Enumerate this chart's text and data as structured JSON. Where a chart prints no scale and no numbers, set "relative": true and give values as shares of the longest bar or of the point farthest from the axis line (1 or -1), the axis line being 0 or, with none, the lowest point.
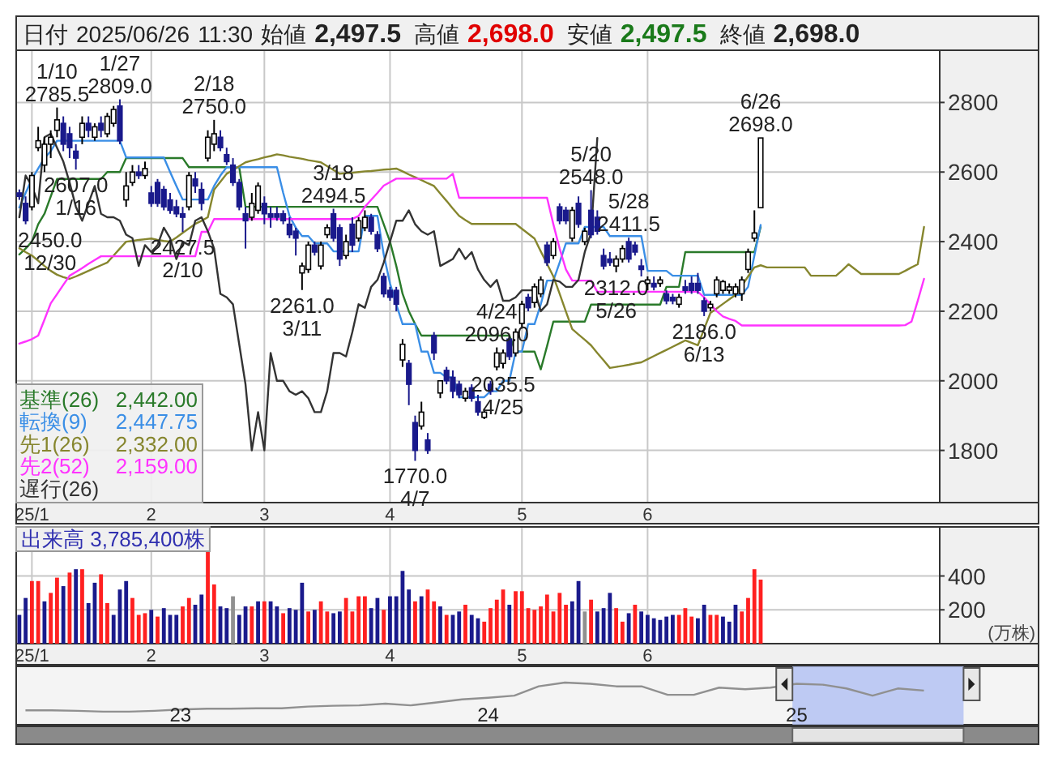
{
  "chart_data": [
    {
      "type": "candlestick",
      "title": "日付 2025/06/26 11:30 始値 2,497.5 高値 2,698.0 安値 2,497.5 終値 2,698.0",
      "categories": [
        null,
        null,
        "25/1",
        null,
        null,
        null,
        null,
        null,
        null,
        null,
        null,
        null,
        null,
        null,
        null,
        null,
        null,
        null,
        null,
        null,
        null,
        "2",
        null,
        null,
        null,
        null,
        null,
        null,
        null,
        null,
        null,
        null,
        null,
        null,
        null,
        null,
        null,
        null,
        null,
        "3",
        null,
        null,
        null,
        null,
        null,
        null,
        null,
        null,
        null,
        null,
        null,
        null,
        null,
        null,
        null,
        null,
        null,
        null,
        null,
        "4",
        null,
        null,
        null,
        null,
        null,
        null,
        null,
        null,
        null,
        null,
        null,
        null,
        null,
        null,
        null,
        null,
        null,
        null,
        null,
        null,
        "5",
        null,
        null,
        null,
        null,
        null,
        null,
        null,
        null,
        null,
        null,
        null,
        null,
        null,
        null,
        null,
        null,
        null,
        null,
        null,
        "6",
        null,
        null,
        null,
        null,
        null,
        null,
        null,
        null,
        null,
        null,
        null,
        null,
        null,
        null,
        null,
        null,
        null,
        null,
        null,
        null,
        null,
        null,
        null,
        null,
        null,
        null,
        null,
        null,
        null,
        null,
        null,
        null,
        null,
        null,
        null,
        null,
        null,
        null,
        null,
        null,
        null,
        null,
        null,
        null,
        null,
        null
      ],
      "ohlc": [
        [
          2540,
          2550,
          2520,
          2530
        ],
        [
          2510,
          2530,
          2450,
          2460
        ],
        [
          2500,
          2600,
          2490,
          2590
        ],
        [
          2670,
          2730,
          2660,
          2690
        ],
        [
          2620,
          2700,
          2600,
          2680
        ],
        [
          2680,
          2720,
          2640,
          2700
        ],
        [
          2720,
          2785.5,
          2700,
          2750
        ],
        [
          2740,
          2760,
          2660,
          2680
        ],
        [
          2710,
          2730,
          2640,
          2670
        ],
        [
          2660,
          2680,
          2607,
          2640
        ],
        [
          2700,
          2760,
          2680,
          2740
        ],
        [
          2740,
          2760,
          2700,
          2720
        ],
        [
          2700,
          2740,
          2690,
          2730
        ],
        [
          2740,
          2760,
          2700,
          2720
        ],
        [
          2710,
          2770,
          2700,
          2760
        ],
        [
          2740,
          2790,
          2730,
          2780
        ],
        [
          2790,
          2809,
          2680,
          2690
        ],
        [
          2520,
          2600,
          2500,
          2560
        ],
        [
          2570,
          2620,
          2560,
          2600
        ],
        [
          2600,
          2620,
          2580,
          2590
        ],
        [
          2590,
          2630,
          2580,
          2610
        ],
        [
          2540,
          2560,
          2500,
          2510
        ],
        [
          2570,
          2580,
          2500,
          2510
        ],
        [
          2550,
          2560,
          2490,
          2500
        ],
        [
          2520,
          2540,
          2480,
          2490
        ],
        [
          2500,
          2520,
          2470,
          2480
        ],
        [
          2480,
          2500,
          2427.5,
          2470
        ],
        [
          2500,
          2600,
          2490,
          2590
        ],
        [
          2580,
          2600,
          2540,
          2560
        ],
        [
          2550,
          2570,
          2490,
          2510
        ],
        [
          2640,
          2720,
          2630,
          2700
        ],
        [
          2680,
          2750,
          2660,
          2710
        ],
        [
          2700,
          2720,
          2660,
          2670
        ],
        [
          2650,
          2670,
          2620,
          2630
        ],
        [
          2620,
          2640,
          2560,
          2570
        ],
        [
          2570,
          2580,
          2490,
          2500
        ],
        [
          2480,
          2500,
          2380,
          2460
        ],
        [
          2470,
          2540,
          2460,
          2510
        ],
        [
          2490,
          2570,
          2480,
          2560
        ],
        [
          2510,
          2530,
          2450,
          2480
        ],
        [
          2480,
          2500,
          2440,
          2470
        ],
        [
          2480,
          2500,
          2460,
          2470
        ],
        [
          2480,
          2490,
          2450,
          2460
        ],
        [
          2450,
          2470,
          2410,
          2420
        ],
        [
          2430,
          2440,
          2360,
          2410
        ],
        [
          2310,
          2340,
          2261,
          2330
        ],
        [
          2320,
          2400,
          2310,
          2390
        ],
        [
          2390,
          2400,
          2360,
          2370
        ],
        [
          2330,
          2400,
          2320,
          2390
        ],
        [
          2420,
          2450,
          2410,
          2440
        ],
        [
          2480,
          2494.5,
          2400,
          2410
        ],
        [
          2440,
          2450,
          2330,
          2350
        ],
        [
          2360,
          2420,
          2350,
          2400
        ],
        [
          2450,
          2470,
          2370,
          2390
        ],
        [
          2410,
          2470,
          2400,
          2460
        ],
        [
          2440,
          2490,
          2430,
          2470
        ],
        [
          2470,
          2480,
          2420,
          2430
        ],
        [
          2420,
          2430,
          2370,
          2380
        ],
        [
          2300,
          2310,
          2240,
          2250
        ],
        [
          2260,
          2270,
          2230,
          2240
        ],
        [
          2260,
          2270,
          2200,
          2220
        ],
        [
          2060,
          2120,
          2040,
          2105
        ],
        [
          2050,
          2060,
          1930,
          1990
        ],
        [
          1880,
          1900,
          1770,
          1800
        ],
        [
          1870,
          1940,
          1860,
          1910
        ],
        [
          1830,
          1850,
          1790,
          1800
        ],
        [
          2130,
          2140,
          2060,
          2080
        ],
        [
          1965,
          2000,
          1950,
          2000
        ],
        [
          2030,
          2040,
          1990,
          2000
        ],
        [
          2010,
          2030,
          1950,
          1970
        ],
        [
          1990,
          2000,
          1950,
          1960
        ],
        [
          1950,
          1980,
          1940,
          1970
        ],
        [
          1980,
          1990,
          1940,
          1950
        ],
        [
          1940,
          1960,
          1900,
          1910
        ],
        [
          1895,
          1920,
          1890,
          1910
        ],
        [
          1990,
          2000,
          1960,
          1970
        ],
        [
          2040,
          2096,
          2030,
          2080
        ],
        [
          2050,
          2090,
          2035.5,
          2080
        ],
        [
          2120,
          2130,
          2060,
          2070
        ],
        [
          2080,
          2150,
          2070,
          2140
        ],
        [
          2165,
          2230,
          2150,
          2220
        ],
        [
          2240,
          2250,
          2200,
          2210
        ],
        [
          2225,
          2280,
          2210,
          2270
        ],
        [
          2250,
          2300,
          2240,
          2290
        ],
        [
          2390,
          2400,
          2330,
          2340
        ],
        [
          2360,
          2410,
          2350,
          2400
        ],
        [
          2500,
          2510,
          2450,
          2460
        ],
        [
          2490,
          2500,
          2450,
          2460
        ],
        [
          2410,
          2500,
          2400,
          2490
        ],
        [
          2510,
          2530,
          2440,
          2450
        ],
        [
          2400,
          2440,
          2390,
          2430
        ],
        [
          2490,
          2548,
          2410,
          2420
        ],
        [
          2470,
          2490,
          2420,
          2430
        ],
        [
          2360,
          2380,
          2320,
          2330
        ],
        [
          2350,
          2370,
          2330,
          2340
        ],
        [
          2330,
          2360,
          2312,
          2350
        ],
        [
          2350,
          2390,
          2340,
          2380
        ],
        [
          2400,
          2411.5,
          2340,
          2350
        ],
        [
          2390,
          2400,
          2360,
          2370
        ],
        [
          2330,
          2350,
          2300,
          2320
        ],
        [
          2280,
          2300,
          2260,
          2290
        ],
        [
          2280,
          2300,
          2260,
          2270
        ],
        [
          2280,
          2300,
          2270,
          2290
        ],
        [
          2250,
          2260,
          2220,
          2230
        ],
        [
          2240,
          2250,
          2220,
          2230
        ],
        [
          2220,
          2250,
          2210,
          2240
        ],
        [
          2270,
          2290,
          2250,
          2260
        ],
        [
          2280,
          2300,
          2250,
          2260
        ],
        [
          2280,
          2310,
          2250,
          2260
        ],
        [
          2230,
          2240,
          2186,
          2200
        ],
        [
          2210,
          2230,
          2200,
          2220
        ],
        [
          2250,
          2300,
          2240,
          2290
        ],
        [
          2260,
          2290,
          2250,
          2285
        ],
        [
          2260,
          2280,
          2250,
          2270
        ],
        [
          2250,
          2280,
          2240,
          2270
        ],
        [
          2250,
          2300,
          2230,
          2290
        ],
        [
          2320,
          2380,
          2310,
          2370
        ],
        [
          2410,
          2490,
          2400,
          2425
        ],
        [
          2497.5,
          2698,
          2497.5,
          2698
        ],
        null,
        null,
        null,
        null,
        null,
        null,
        null,
        null,
        null,
        null,
        null,
        null,
        null,
        null,
        null,
        null,
        null,
        null,
        null,
        null,
        null,
        null,
        null,
        null,
        null,
        null,
        null,
        null
      ],
      "value_labels": [
        null,
        "2450.0\n12/30",
        null,
        null,
        null,
        null,
        "1/10\n2785.5",
        null,
        null,
        "2607.0\n1/16",
        null,
        null,
        null,
        null,
        null,
        null,
        "1/27\n2809.0",
        null,
        null,
        null,
        null,
        null,
        null,
        null,
        null,
        null,
        "2427.5\n2/10",
        null,
        null,
        null,
        null,
        "2/18\n2750.0",
        null,
        null,
        null,
        null,
        null,
        null,
        null,
        null,
        null,
        null,
        null,
        null,
        null,
        "2261.0\n3/11",
        null,
        null,
        null,
        null,
        "3/18\n2494.5",
        null,
        null,
        null,
        null,
        null,
        null,
        null,
        null,
        null,
        null,
        null,
        null,
        "1770.0\n4/7",
        null,
        null,
        null,
        null,
        null,
        null,
        null,
        null,
        null,
        null,
        null,
        null,
        "4/24\n2096.0",
        "2035.5\n4/25",
        null,
        null,
        null,
        null,
        null,
        null,
        null,
        null,
        null,
        null,
        null,
        null,
        null,
        "5/20\n2548.0",
        null,
        null,
        null,
        "2312.0\n5/26",
        null,
        "5/28\n2411.5",
        null,
        null,
        null,
        null,
        null,
        null,
        null,
        null,
        null,
        null,
        null,
        "2186.0\n6/13",
        null,
        null,
        null,
        null,
        null,
        null,
        null,
        null,
        "6/26\n2698.0",
        null,
        null,
        null,
        null,
        null,
        null,
        null,
        null,
        null,
        null,
        null,
        null,
        null,
        null,
        null,
        null,
        null,
        null,
        null,
        null,
        null,
        null,
        null,
        null,
        null,
        null,
        null,
        null
      ],
      "series": [
        {
          "name": "基準(26)",
          "type": "line",
          "color": "#2a7a2a",
          "values": [
            2363,
            2380,
            2400,
            2450,
            2480,
            2530,
            2580,
            2580,
            2580,
            2580,
            2580,
            2580,
            2580,
            2580,
            2600,
            2600,
            2600,
            2640,
            2640,
            2640,
            2640,
            2640,
            2640,
            2640,
            2640,
            2640,
            2640,
            2614,
            2614,
            2614,
            2614,
            2614,
            2614,
            2614,
            2614,
            2614,
            2500,
            2500,
            2500,
            2500,
            2500,
            2500,
            2500,
            2500,
            2500,
            2500,
            2500,
            2500,
            2500,
            2500,
            2500,
            2500,
            2500,
            2500,
            2500,
            2500,
            2500,
            2500,
            2450,
            2400,
            2330,
            2250,
            2200,
            2163,
            2130,
            2130,
            2130,
            2130,
            2130,
            2130,
            2130,
            2130,
            2130,
            2130,
            2130,
            2130,
            2130,
            2130,
            2130,
            2084,
            2084,
            2084,
            2084,
            2033,
            2100,
            2170,
            2170,
            2170,
            2170,
            2170,
            2170,
            2219,
            2219,
            2219,
            2219,
            2219,
            2219,
            2219,
            2219,
            2219,
            2219,
            2219,
            2219,
            2270,
            2270,
            2270,
            2370,
            2370,
            2370,
            2370,
            2370,
            2370,
            2370,
            2370,
            2370,
            2370,
            2370,
            2370,
            2442,
            null,
            null,
            null,
            null,
            null,
            null,
            null,
            null,
            null,
            null,
            null,
            null,
            null,
            null,
            null,
            null,
            null,
            null,
            null,
            null,
            null,
            null,
            null,
            null,
            null,
            null,
            null,
            null
          ]
        },
        {
          "name": "転換(9)",
          "type": "line",
          "color": "#3a8ee6",
          "values": [
            2498,
            2540,
            2580,
            2610,
            2640,
            2660,
            2690,
            2690,
            2690,
            2690,
            2690,
            2690,
            2690,
            2690,
            2690,
            2690,
            2690,
            2642,
            2642,
            2642,
            2642,
            2642,
            2642,
            2642,
            2600,
            2560,
            2521,
            2521,
            2521,
            2521,
            2521,
            2560,
            2590,
            2614,
            2614,
            2614,
            2614,
            2614,
            2614,
            2614,
            2614,
            2614,
            2540,
            2474,
            2440,
            2416,
            2416,
            2395,
            2395,
            2395,
            2372,
            2372,
            2372,
            2372,
            2372,
            2474,
            2474,
            2474,
            2363,
            2280,
            2220,
            2163,
            2163,
            2163,
            2084,
            2084,
            2023,
            2023,
            2010,
            2010,
            1953,
            1953,
            1953,
            1953,
            1953,
            1970,
            1970,
            2000,
            2000,
            2084,
            2084,
            2163,
            2163,
            2220,
            2288,
            2288,
            2340,
            2395,
            2395,
            2395,
            2442,
            2442,
            2442,
            2442,
            2416,
            2416,
            2416,
            2416,
            2416,
            2416,
            2316,
            2316,
            2316,
            2316,
            2302,
            2302,
            2302,
            2302,
            2302,
            2247,
            2247,
            2247,
            2247,
            2247,
            2247,
            2247,
            2270,
            2360,
            2447.75,
            null,
            null,
            null,
            null,
            null,
            null,
            null,
            null,
            null,
            null,
            null,
            null,
            null,
            null,
            null,
            null,
            null,
            null,
            null,
            null,
            null,
            null,
            null,
            null,
            null,
            null,
            null,
            null
          ]
        },
        {
          "name": "先1(26)",
          "type": "line",
          "color": "#86862e",
          "values": [
            2381,
            2370,
            2360,
            2345,
            2330,
            2316,
            2305,
            2298,
            2293,
            2300,
            2308,
            2316,
            2324,
            2332,
            2340,
            2360,
            2380,
            2400,
            2402,
            2405,
            2407,
            2409,
            2405,
            2402,
            2400,
            2412,
            2425,
            2438,
            2451,
            2460,
            2470,
            2549,
            2572,
            2595,
            2606,
            2617,
            2628,
            2633,
            2637,
            2642,
            2646,
            2651,
            2648,
            2644,
            2641,
            2638,
            2634,
            2631,
            2628,
            2617,
            2606,
            2595,
            2597,
            2598,
            2600,
            2602,
            2603,
            2605,
            2607,
            2608,
            2610,
            2602,
            2593,
            2585,
            2577,
            2568,
            2560,
            2538,
            2517,
            2495,
            2474,
            2462,
            2451,
            2451,
            2451,
            2451,
            2451,
            2451,
            2451,
            2451,
            2437,
            2423,
            2409,
            2372,
            2336,
            2300,
            2250,
            2199,
            2149,
            2133,
            2118,
            2102,
            2080,
            2059,
            2037,
            2040,
            2043,
            2046,
            2050,
            2053,
            2062,
            2071,
            2080,
            2089,
            2098,
            2107,
            2116,
            2109,
            2102,
            2149,
            2195,
            2208,
            2221,
            2234,
            2247,
            2273,
            2300,
            2326,
            2332,
            2326,
            2326,
            2326,
            2326,
            2326,
            2326,
            2326,
            2302,
            2302,
            2302,
            2302,
            2302,
            2318,
            2335,
            2321,
            2307,
            2307,
            2307,
            2307,
            2307,
            2307,
            2307,
            2316,
            2326,
            2335,
            2442,
            null,
            null
          ]
        },
        {
          "name": "先2(52)",
          "type": "line",
          "color": "#ff33ff",
          "values": [
            2107,
            2113,
            2120,
            2130,
            2176,
            2223,
            2249,
            2276,
            2302,
            2313,
            2324,
            2336,
            2347,
            2358,
            2358,
            2358,
            2358,
            2358,
            2358,
            2358,
            2358,
            2358,
            2358,
            2358,
            2358,
            2358,
            2358,
            2358,
            2358,
            2428,
            2428,
            2465,
            2465,
            2465,
            2465,
            2465,
            2465,
            2465,
            2465,
            2465,
            2465,
            2465,
            2465,
            2465,
            2465,
            2465,
            2465,
            2465,
            2465,
            2465,
            2465,
            2465,
            2465,
            2465,
            2474,
            2500,
            2520,
            2540,
            2561,
            2571,
            2581,
            2581,
            2581,
            2581,
            2581,
            2581,
            2581,
            2581,
            2581,
            2595,
            2526,
            2526,
            2526,
            2526,
            2526,
            2526,
            2526,
            2526,
            2526,
            2526,
            2526,
            2526,
            2526,
            2526,
            2526,
            2450,
            2380,
            2320,
            2288,
            2288,
            2288,
            2288,
            2256,
            2256,
            2256,
            2256,
            2256,
            2256,
            2256,
            2256,
            2256,
            2256,
            2256,
            2256,
            2256,
            2256,
            2256,
            2256,
            2256,
            2240,
            2220,
            2200,
            2185,
            2178,
            2172,
            2159,
            2159,
            2159,
            2159,
            2159,
            2159,
            2159,
            2159,
            2159,
            2159,
            2159,
            2159,
            2159,
            2159,
            2159,
            2159,
            2159,
            2159,
            2159,
            2159,
            2159,
            2159,
            2159,
            2159,
            2159,
            2159,
            2160,
            2170,
            2230,
            2293,
            null,
            null
          ]
        },
        {
          "name": "遅行(26)",
          "type": "line",
          "color": "#333333",
          "values": [
            2470,
            2590,
            2560,
            2510,
            2700,
            2710,
            2670,
            2630,
            2570,
            2500,
            2460,
            2510,
            2560,
            2480,
            2470,
            2470,
            2460,
            2420,
            2410,
            2330,
            2390,
            2370,
            2390,
            2440,
            2410,
            2350,
            2400,
            2390,
            2460,
            2470,
            2430,
            2380,
            2250,
            2240,
            2220,
            2105,
            1990,
            1800,
            1910,
            1800,
            2080,
            2000,
            2000,
            1970,
            1960,
            1970,
            1950,
            1910,
            1910,
            1970,
            2080,
            2080,
            2070,
            2140,
            2220,
            2210,
            2270,
            2290,
            2340,
            2400,
            2460,
            2460,
            2490,
            2450,
            2430,
            2420,
            2430,
            2330,
            2340,
            2350,
            2380,
            2350,
            2370,
            2320,
            2290,
            2270,
            2290,
            2230,
            2230,
            2240,
            2260,
            2260,
            2260,
            2200,
            2220,
            2290,
            2285,
            2270,
            2270,
            2290,
            2370,
            2425,
            2698,
            null,
            null,
            null,
            null,
            null,
            null,
            null,
            null,
            null,
            null,
            null,
            null,
            null,
            null,
            null,
            null,
            null,
            null,
            null,
            null,
            null,
            null,
            null,
            null,
            null,
            null,
            null,
            null,
            null,
            null,
            null,
            null,
            null,
            null,
            null,
            null,
            null,
            null,
            null,
            null,
            null,
            null,
            null,
            null,
            null,
            null,
            null,
            null,
            null,
            null,
            null,
            null,
            null,
            null
          ]
        }
      ],
      "ylim": [
        1650,
        2950
      ],
      "yticks": [
        1800,
        2000,
        2200,
        2400,
        2600,
        2800
      ],
      "grid": true,
      "legend": "bottom left",
      "annotations": [
        "2,442.00",
        "2,447.75",
        "2,332.00",
        "2,159.00"
      ]
    },
    {
      "type": "bar",
      "title": "出来高 3,785,400株",
      "ylabel": "(万株)",
      "categories": [
        null,
        null,
        "25/1",
        null,
        null,
        null,
        null,
        null,
        null,
        null,
        null,
        null,
        null,
        null,
        null,
        null,
        null,
        null,
        null,
        null,
        null,
        "2",
        null,
        null,
        null,
        null,
        null,
        null,
        null,
        null,
        null,
        null,
        null,
        null,
        null,
        null,
        null,
        null,
        null,
        "3",
        null,
        null,
        null,
        null,
        null,
        null,
        null,
        null,
        null,
        null,
        null,
        null,
        null,
        null,
        null,
        null,
        null,
        null,
        null,
        "4",
        null,
        null,
        null,
        null,
        null,
        null,
        null,
        null,
        null,
        null,
        null,
        null,
        null,
        null,
        null,
        null,
        null,
        null,
        null,
        null,
        "5",
        null,
        null,
        null,
        null,
        null,
        null,
        null,
        null,
        null,
        null,
        null,
        null,
        null,
        null,
        null,
        null,
        null,
        null,
        null,
        "6",
        null,
        null,
        null,
        null,
        null,
        null,
        null,
        null,
        null,
        null,
        null,
        null,
        null,
        null,
        null,
        null,
        null,
        null,
        null,
        null,
        null,
        null,
        null,
        null,
        null,
        null,
        null,
        null,
        null,
        null,
        null,
        null,
        null,
        null,
        null,
        null,
        null,
        null,
        null,
        null,
        null,
        null,
        null,
        null,
        null,
        null
      ],
      "values": [
        170,
        270,
        370,
        370,
        250,
        300,
        390,
        340,
        420,
        440,
        440,
        240,
        360,
        410,
        240,
        170,
        320,
        370,
        270,
        170,
        180,
        200,
        160,
        210,
        170,
        170,
        220,
        270,
        230,
        290,
        550,
        350,
        220,
        210,
        280,
        170,
        220,
        220,
        250,
        250,
        250,
        220,
        180,
        210,
        200,
        360,
        190,
        200,
        250,
        190,
        180,
        190,
        270,
        190,
        280,
        280,
        210,
        270,
        200,
        280,
        280,
        430,
        320,
        250,
        280,
        320,
        250,
        220,
        170,
        170,
        190,
        230,
        170,
        150,
        130,
        210,
        260,
        320,
        230,
        310,
        310,
        210,
        200,
        220,
        290,
        190,
        300,
        230,
        250,
        370,
        190,
        260,
        190,
        210,
        300,
        210,
        130,
        180,
        230,
        190,
        170,
        150,
        140,
        160,
        170,
        170,
        210,
        160,
        150,
        230,
        170,
        170,
        160,
        130,
        230,
        190,
        270,
        440,
        378.54,
        null,
        null,
        null,
        null,
        null,
        null,
        null,
        null,
        null,
        null,
        null,
        null,
        null,
        null,
        null,
        null,
        null,
        null,
        null,
        null,
        null,
        null,
        null,
        null,
        null,
        null,
        null,
        null
      ],
      "colors": [
        "#1a1a8c",
        "#1a1a8c",
        "#ff2020",
        "#ff2020",
        "#1a1a8c",
        "#ff2020",
        "#ff2020",
        "#1a1a8c",
        "#ff2020",
        "#1a1a8c",
        "#ff2020",
        "#1a1a8c",
        "#1a1a8c",
        "#ff2020",
        "#ff2020",
        "#1a1a8c",
        "#1a1a8c",
        "#1a1a8c",
        "#ff2020",
        "#ff2020",
        "#ff2020",
        "#1a1a8c",
        "#ff2020",
        "#1a1a8c",
        "#1a1a8c",
        "#1a1a8c",
        "#ff2020",
        "#ff2020",
        "#1a1a8c",
        "#1a1a8c",
        "#ff2020",
        "#ff2020",
        "#1a1a8c",
        "#1a1a8c",
        "#909090",
        "#1a1a8c",
        "#1a1a8c",
        "#ff2020",
        "#1a1a8c",
        "#ff2020",
        "#1a1a8c",
        "#1a1a8c",
        "#ff2020",
        "#1a1a8c",
        "#1a1a8c",
        "#1a1a8c",
        "#ff2020",
        "#1a1a8c",
        "#ff2020",
        "#ff2020",
        "#1a1a8c",
        "#1a1a8c",
        "#ff2020",
        "#ff2020",
        "#ff2020",
        "#ff2020",
        "#1a1a8c",
        "#1a1a8c",
        "#ff2020",
        "#1a1a8c",
        "#1a1a8c",
        "#1a1a8c",
        "#1a1a8c",
        "#ff2020",
        "#1a1a8c",
        "#ff2020",
        "#ff2020",
        "#1a1a8c",
        "#ff2020",
        "#1a1a8c",
        "#1a1a8c",
        "#ff2020",
        "#1a1a8c",
        "#1a1a8c",
        "#ff2020",
        "#ff2020",
        "#ff2020",
        "#ff2020",
        "#1a1a8c",
        "#ff2020",
        "#ff2020",
        "#ff2020",
        "#ff2020",
        "#ff2020",
        "#ff2020",
        "#ff2020",
        "#ff2020",
        "#ff2020",
        "#1a1a8c",
        "#1a1a8c",
        "#909090",
        "#ff2020",
        "#1a1a8c",
        "#1a1a8c",
        "#1a1a8c",
        "#ff2020",
        "#ff2020",
        "#1a1a8c",
        "#ff2020",
        "#1a1a8c",
        "#1a1a8c",
        "#1a1a8c",
        "#1a1a8c",
        "#1a1a8c",
        "#1a1a8c",
        "#ff2020",
        "#ff2020",
        "#ff2020",
        "#1a1a8c",
        "#1a1a8c",
        "#ff2020",
        "#ff2020",
        "#1a1a8c",
        "#1a1a8c",
        "#1a1a8c",
        "#ff2020",
        "#ff2020",
        "#ff2020",
        "#ff2020",
        null,
        null,
        null,
        null,
        null,
        null,
        null,
        null,
        null,
        null,
        null,
        null,
        null,
        null,
        null,
        null,
        null,
        null,
        null,
        null,
        null,
        null,
        null,
        null,
        null,
        null,
        null,
        null
      ],
      "ylim": [
        0,
        690
      ],
      "yticks": [
        200,
        400
      ],
      "grid": true
    },
    {
      "type": "line",
      "relative": true,
      "color": "#909090",
      "x": [
        "2022-07",
        "2022-08",
        "2022-09",
        "2022-10",
        "2022-11",
        "2022-12",
        "2023-01",
        "2023-02",
        "2023-03",
        "2023-04",
        "2023-05",
        "2023-06",
        "2023-07",
        "2023-08",
        "2023-09",
        "2023-10",
        "2023-11",
        "2023-12",
        "2024-01",
        "2024-02",
        "2024-03",
        "2024-04",
        "2024-05",
        "2024-06",
        "2024-07",
        "2024-08",
        "2024-09",
        "2024-10",
        "2024-11",
        "2024-12",
        "2025-01",
        "2025-02",
        "2025-03",
        "2025-04",
        "2025-05",
        "2025-06"
      ],
      "values": [
        0.34,
        0.34,
        0.33,
        0.31,
        0.31,
        0.33,
        0.36,
        0.38,
        0.38,
        0.39,
        0.39,
        0.43,
        0.45,
        0.46,
        0.5,
        0.46,
        0.53,
        0.6,
        0.64,
        0.69,
        0.91,
        1,
        0.97,
        0.91,
        0.91,
        0.71,
        0.71,
        0.88,
        0.84,
        0.88,
        0.97,
        0.95,
        0.86,
        0.69,
        0.86,
        0.81
      ],
      "xlim": [
        "2022-06-20",
        "2025-10-15"
      ],
      "xticks": [
        {
          "value": "2023-01",
          "label": "23"
        },
        {
          "value": "2024-01",
          "label": "24"
        },
        {
          "value": "2025-01",
          "label": "25"
        }
      ],
      "bands": [
        {
          "axis": "x",
          "from": "2024-12-27",
          "to": "2025-07-18",
          "color": "#b4c2f2"
        }
      ]
    }
  ]
}
